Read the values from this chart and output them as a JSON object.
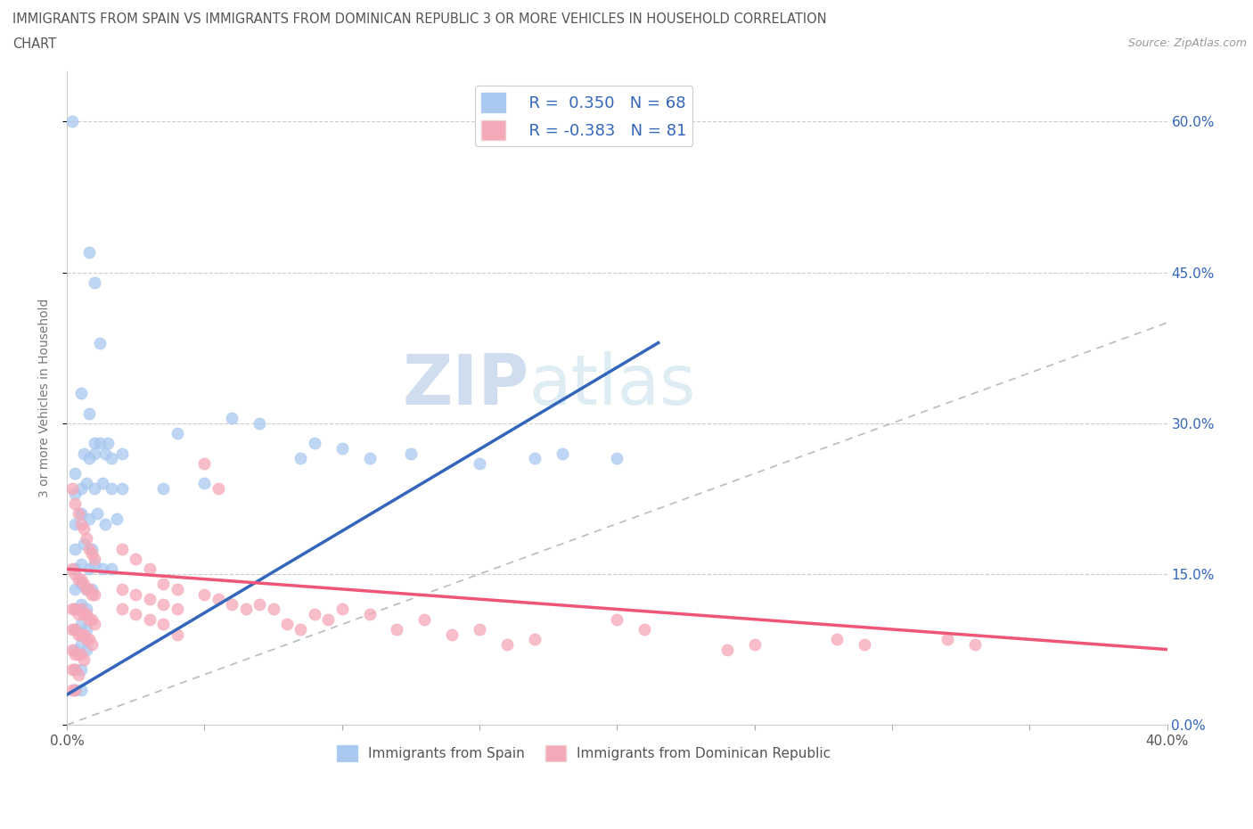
{
  "title_line1": "IMMIGRANTS FROM SPAIN VS IMMIGRANTS FROM DOMINICAN REPUBLIC 3 OR MORE VEHICLES IN HOUSEHOLD CORRELATION",
  "title_line2": "CHART",
  "source": "Source: ZipAtlas.com",
  "ylabel": "3 or more Vehicles in Household",
  "xmin": 0.0,
  "xmax": 0.4,
  "ymin": 0.0,
  "ymax": 0.65,
  "yticks": [
    0.0,
    0.15,
    0.3,
    0.45,
    0.6
  ],
  "ytick_labels": [
    "0.0%",
    "15.0%",
    "30.0%",
    "45.0%",
    "60.0%"
  ],
  "xticks": [
    0.0,
    0.05,
    0.1,
    0.15,
    0.2,
    0.25,
    0.3,
    0.35,
    0.4
  ],
  "xtick_labels": [
    "0.0%",
    "",
    "",
    "",
    "",
    "",
    "",
    "",
    "40.0%"
  ],
  "spain_R": 0.35,
  "spain_N": 68,
  "dr_R": -0.383,
  "dr_N": 81,
  "spain_color": "#a8c8f0",
  "dr_color": "#f5a8b8",
  "spain_trend_color": "#3366bb",
  "dr_trend_color": "#ee5577",
  "diagonal_color": "#bbbbbb",
  "watermark_zip": "ZIP",
  "watermark_atlas": "atlas",
  "background_color": "#ffffff",
  "spain_scatter": [
    [
      0.002,
      0.6
    ],
    [
      0.008,
      0.47
    ],
    [
      0.01,
      0.44
    ],
    [
      0.012,
      0.38
    ],
    [
      0.005,
      0.33
    ],
    [
      0.008,
      0.31
    ],
    [
      0.01,
      0.28
    ],
    [
      0.012,
      0.28
    ],
    [
      0.015,
      0.28
    ],
    [
      0.003,
      0.25
    ],
    [
      0.006,
      0.27
    ],
    [
      0.008,
      0.265
    ],
    [
      0.01,
      0.27
    ],
    [
      0.014,
      0.27
    ],
    [
      0.016,
      0.265
    ],
    [
      0.02,
      0.27
    ],
    [
      0.003,
      0.23
    ],
    [
      0.005,
      0.235
    ],
    [
      0.007,
      0.24
    ],
    [
      0.01,
      0.235
    ],
    [
      0.013,
      0.24
    ],
    [
      0.016,
      0.235
    ],
    [
      0.02,
      0.235
    ],
    [
      0.003,
      0.2
    ],
    [
      0.005,
      0.21
    ],
    [
      0.008,
      0.205
    ],
    [
      0.011,
      0.21
    ],
    [
      0.014,
      0.2
    ],
    [
      0.018,
      0.205
    ],
    [
      0.003,
      0.175
    ],
    [
      0.006,
      0.18
    ],
    [
      0.009,
      0.175
    ],
    [
      0.003,
      0.155
    ],
    [
      0.005,
      0.16
    ],
    [
      0.008,
      0.155
    ],
    [
      0.01,
      0.16
    ],
    [
      0.013,
      0.155
    ],
    [
      0.016,
      0.155
    ],
    [
      0.003,
      0.135
    ],
    [
      0.005,
      0.14
    ],
    [
      0.007,
      0.135
    ],
    [
      0.009,
      0.135
    ],
    [
      0.003,
      0.115
    ],
    [
      0.005,
      0.12
    ],
    [
      0.007,
      0.115
    ],
    [
      0.003,
      0.095
    ],
    [
      0.005,
      0.1
    ],
    [
      0.007,
      0.095
    ],
    [
      0.003,
      0.075
    ],
    [
      0.005,
      0.08
    ],
    [
      0.007,
      0.075
    ],
    [
      0.003,
      0.055
    ],
    [
      0.005,
      0.055
    ],
    [
      0.003,
      0.035
    ],
    [
      0.005,
      0.035
    ],
    [
      0.04,
      0.29
    ],
    [
      0.06,
      0.305
    ],
    [
      0.07,
      0.3
    ],
    [
      0.085,
      0.265
    ],
    [
      0.09,
      0.28
    ],
    [
      0.1,
      0.275
    ],
    [
      0.11,
      0.265
    ],
    [
      0.125,
      0.27
    ],
    [
      0.15,
      0.26
    ],
    [
      0.17,
      0.265
    ],
    [
      0.18,
      0.27
    ],
    [
      0.2,
      0.265
    ],
    [
      0.035,
      0.235
    ],
    [
      0.05,
      0.24
    ]
  ],
  "dr_scatter": [
    [
      0.002,
      0.235
    ],
    [
      0.003,
      0.22
    ],
    [
      0.004,
      0.21
    ],
    [
      0.005,
      0.2
    ],
    [
      0.006,
      0.195
    ],
    [
      0.007,
      0.185
    ],
    [
      0.008,
      0.175
    ],
    [
      0.009,
      0.17
    ],
    [
      0.01,
      0.165
    ],
    [
      0.002,
      0.155
    ],
    [
      0.003,
      0.15
    ],
    [
      0.004,
      0.145
    ],
    [
      0.005,
      0.145
    ],
    [
      0.006,
      0.14
    ],
    [
      0.007,
      0.135
    ],
    [
      0.008,
      0.135
    ],
    [
      0.009,
      0.13
    ],
    [
      0.01,
      0.13
    ],
    [
      0.002,
      0.115
    ],
    [
      0.003,
      0.115
    ],
    [
      0.004,
      0.11
    ],
    [
      0.005,
      0.115
    ],
    [
      0.006,
      0.11
    ],
    [
      0.007,
      0.11
    ],
    [
      0.008,
      0.105
    ],
    [
      0.009,
      0.105
    ],
    [
      0.01,
      0.1
    ],
    [
      0.002,
      0.095
    ],
    [
      0.003,
      0.095
    ],
    [
      0.004,
      0.09
    ],
    [
      0.005,
      0.09
    ],
    [
      0.006,
      0.09
    ],
    [
      0.007,
      0.085
    ],
    [
      0.008,
      0.085
    ],
    [
      0.009,
      0.08
    ],
    [
      0.002,
      0.075
    ],
    [
      0.003,
      0.07
    ],
    [
      0.004,
      0.07
    ],
    [
      0.005,
      0.07
    ],
    [
      0.006,
      0.065
    ],
    [
      0.002,
      0.055
    ],
    [
      0.003,
      0.055
    ],
    [
      0.004,
      0.05
    ],
    [
      0.002,
      0.035
    ],
    [
      0.003,
      0.035
    ],
    [
      0.02,
      0.175
    ],
    [
      0.025,
      0.165
    ],
    [
      0.03,
      0.155
    ],
    [
      0.02,
      0.135
    ],
    [
      0.025,
      0.13
    ],
    [
      0.03,
      0.125
    ],
    [
      0.02,
      0.115
    ],
    [
      0.025,
      0.11
    ],
    [
      0.03,
      0.105
    ],
    [
      0.035,
      0.14
    ],
    [
      0.035,
      0.12
    ],
    [
      0.035,
      0.1
    ],
    [
      0.04,
      0.135
    ],
    [
      0.04,
      0.115
    ],
    [
      0.04,
      0.09
    ],
    [
      0.05,
      0.26
    ],
    [
      0.055,
      0.235
    ],
    [
      0.05,
      0.13
    ],
    [
      0.055,
      0.125
    ],
    [
      0.06,
      0.12
    ],
    [
      0.065,
      0.115
    ],
    [
      0.07,
      0.12
    ],
    [
      0.075,
      0.115
    ],
    [
      0.08,
      0.1
    ],
    [
      0.085,
      0.095
    ],
    [
      0.09,
      0.11
    ],
    [
      0.095,
      0.105
    ],
    [
      0.1,
      0.115
    ],
    [
      0.11,
      0.11
    ],
    [
      0.12,
      0.095
    ],
    [
      0.13,
      0.105
    ],
    [
      0.14,
      0.09
    ],
    [
      0.15,
      0.095
    ],
    [
      0.16,
      0.08
    ],
    [
      0.17,
      0.085
    ],
    [
      0.2,
      0.105
    ],
    [
      0.21,
      0.095
    ],
    [
      0.24,
      0.075
    ],
    [
      0.25,
      0.08
    ],
    [
      0.28,
      0.085
    ],
    [
      0.29,
      0.08
    ],
    [
      0.32,
      0.085
    ],
    [
      0.33,
      0.08
    ]
  ],
  "spain_trend_x": [
    0.0,
    0.215
  ],
  "spain_trend_y": [
    0.03,
    0.38
  ],
  "dr_trend_x": [
    0.0,
    0.4
  ],
  "dr_trend_y": [
    0.155,
    0.075
  ]
}
